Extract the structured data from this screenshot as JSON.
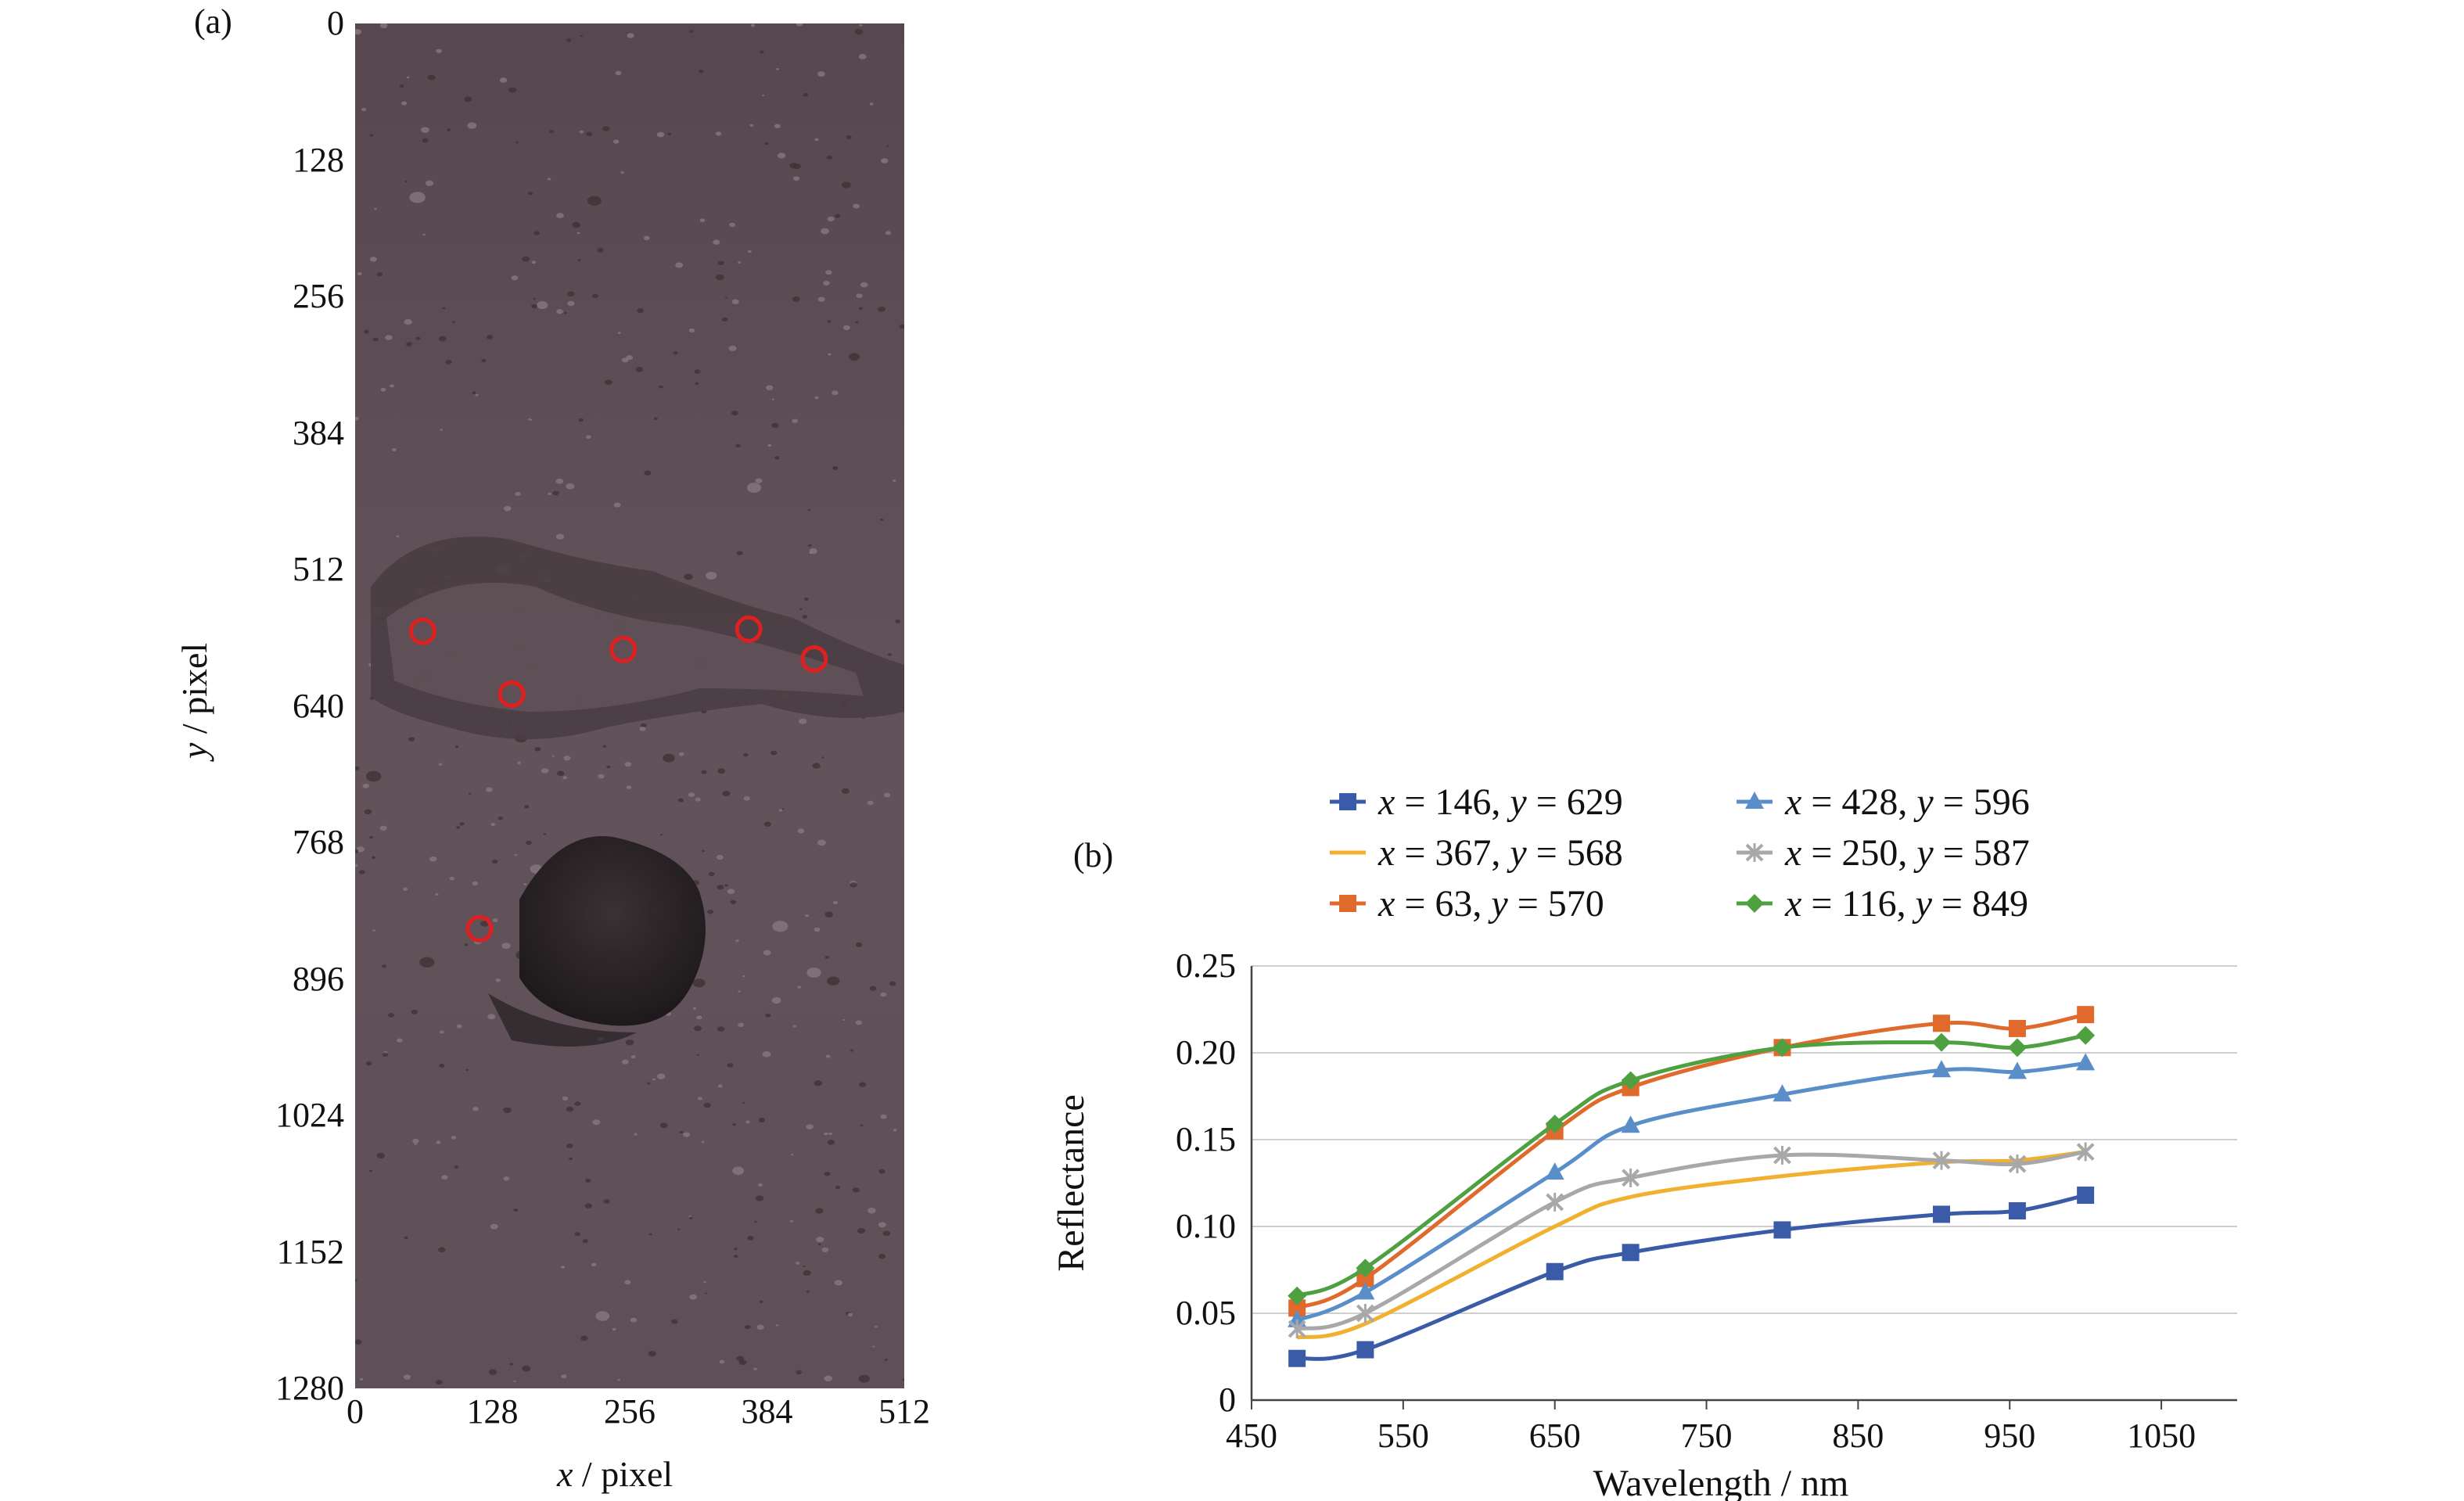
{
  "panel_a": {
    "label": "(a)",
    "xlabel_var": "x",
    "xlabel_unit": " / pixel",
    "ylabel_var": "y",
    "ylabel_unit": " / pixel",
    "x_ticks": [
      "0",
      "128",
      "256",
      "384",
      "512"
    ],
    "y_ticks": [
      "0",
      "128",
      "256",
      "384",
      "512",
      "640",
      "768",
      "896",
      "1024",
      "1152",
      "1280"
    ],
    "x_range": [
      0,
      512
    ],
    "y_range": [
      0,
      1280
    ],
    "markers": [
      {
        "x": 63,
        "y": 570
      },
      {
        "x": 146,
        "y": 629
      },
      {
        "x": 250,
        "y": 587
      },
      {
        "x": 367,
        "y": 568
      },
      {
        "x": 428,
        "y": 596
      },
      {
        "x": 116,
        "y": 849
      }
    ],
    "marker_color": "#e02020",
    "image_color": "#5a4b55"
  },
  "chart_data": {
    "type": "line",
    "panel_label": "(b)",
    "xlabel": "Wavelength / nm",
    "ylabel": "Reflectance",
    "xlim": [
      450,
      1100
    ],
    "ylim": [
      0,
      0.25
    ],
    "x_ticks": [
      "450",
      "550",
      "650",
      "750",
      "850",
      "950",
      "1050"
    ],
    "y_ticks": [
      "0",
      "0.05",
      "0.10",
      "0.15",
      "0.20",
      "0.25"
    ],
    "x": [
      480,
      525,
      650,
      700,
      800,
      905,
      955,
      1000
    ],
    "grid": "horizontal",
    "legend_placement": "top",
    "series": [
      {
        "name": "x = 146, y = 629",
        "xv": "146",
        "yv": "629",
        "color": "#3a5ba8",
        "marker": "square",
        "values": [
          0.024,
          0.029,
          0.074,
          0.085,
          0.098,
          0.107,
          0.109,
          0.118
        ]
      },
      {
        "name": "x = 367, y = 568",
        "xv": "367",
        "yv": "568",
        "color": "#f0b030",
        "marker": "none",
        "values": [
          0.036,
          0.044,
          0.1,
          0.117,
          0.129,
          0.137,
          0.138,
          0.143
        ]
      },
      {
        "name": "x = 63, y = 570",
        "xv": "63",
        "yv": "570",
        "color": "#e06a2c",
        "marker": "square",
        "values": [
          0.053,
          0.07,
          0.155,
          0.18,
          0.203,
          0.217,
          0.214,
          0.222
        ]
      },
      {
        "name": "x = 428, y = 596",
        "xv": "428",
        "yv": "596",
        "color": "#5a8ec8",
        "marker": "triangle",
        "values": [
          0.046,
          0.062,
          0.131,
          0.158,
          0.176,
          0.19,
          0.189,
          0.194
        ]
      },
      {
        "name": "x = 250, y = 587",
        "xv": "250",
        "yv": "587",
        "color": "#a8a8a8",
        "marker": "x",
        "values": [
          0.041,
          0.05,
          0.114,
          0.128,
          0.141,
          0.138,
          0.136,
          0.143
        ]
      },
      {
        "name": "x = 116, y = 849",
        "xv": "116",
        "yv": "849",
        "color": "#4fa040",
        "marker": "diamond",
        "values": [
          0.06,
          0.076,
          0.159,
          0.184,
          0.203,
          0.206,
          0.203,
          0.21
        ]
      }
    ]
  }
}
